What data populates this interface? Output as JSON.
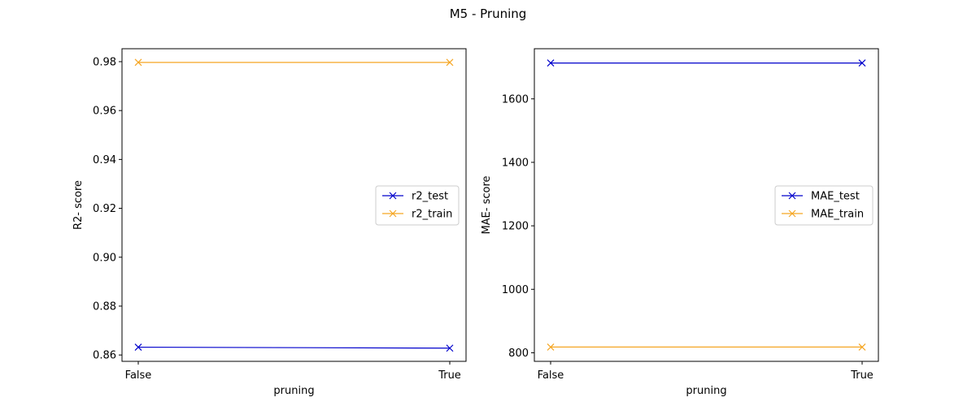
{
  "figure": {
    "title": "M5 - Pruning"
  },
  "chart_data": [
    {
      "type": "line",
      "categories": [
        "False",
        "True"
      ],
      "series": [
        {
          "name": "r2_test",
          "values": [
            0.8632,
            0.8628
          ],
          "color": "#0000cc",
          "marker": "x"
        },
        {
          "name": "r2_train",
          "values": [
            0.9797,
            0.9797
          ],
          "color": "#f5a623",
          "marker": "x"
        }
      ],
      "xlabel": "pruning",
      "ylabel": "R2- score",
      "ylim": [
        0.8574,
        0.9853
      ],
      "yticks": [
        0.86,
        0.88,
        0.9,
        0.92,
        0.94,
        0.96,
        0.98
      ],
      "ytick_labels": [
        "0.86",
        "0.88",
        "0.90",
        "0.92",
        "0.94",
        "0.96",
        "0.98"
      ],
      "legend_position": "center-right",
      "grid": false
    },
    {
      "type": "line",
      "categories": [
        "False",
        "True"
      ],
      "series": [
        {
          "name": "MAE_test",
          "values": [
            1713,
            1713
          ],
          "color": "#0000cc",
          "marker": "x"
        },
        {
          "name": "MAE_train",
          "values": [
            818,
            818
          ],
          "color": "#f5a623",
          "marker": "x"
        }
      ],
      "xlabel": "pruning",
      "ylabel": "MAE- score",
      "ylim": [
        773,
        1758
      ],
      "yticks": [
        800,
        1000,
        1200,
        1400,
        1600
      ],
      "ytick_labels": [
        "800",
        "1000",
        "1200",
        "1400",
        "1600"
      ],
      "legend_position": "center-right",
      "grid": false
    }
  ]
}
